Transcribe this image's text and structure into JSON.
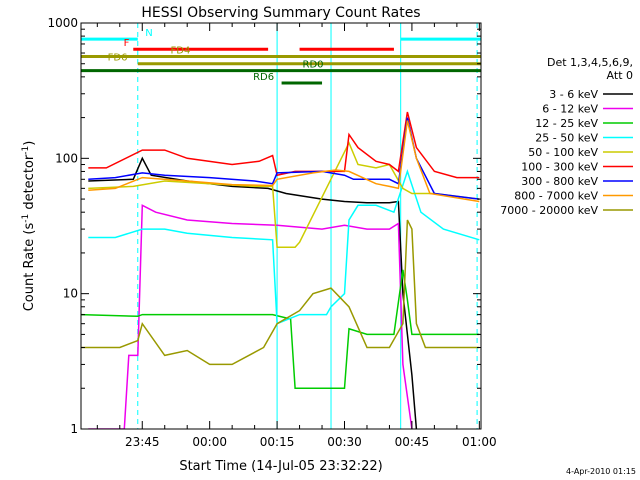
{
  "chart_data": {
    "type": "line",
    "title": "HESSI Observing Summary Count Rates",
    "xlabel": "Start Time (14-Jul-05 23:32:22)",
    "ylabel_main": "Count Rate (s",
    "ylabel_sup1": "-1",
    "ylabel_mid": " detector",
    "ylabel_sup2": "-1",
    "ylabel_end": ")",
    "yscale": "log",
    "ylim": [
      1,
      1000
    ],
    "y_ticks": [
      {
        "value": 1,
        "label": "1"
      },
      {
        "value": 10,
        "label": "10"
      },
      {
        "value": 100,
        "label": "100"
      },
      {
        "value": 1000,
        "label": "1000"
      }
    ],
    "xlim": [
      -13.63,
      75.37
    ],
    "x_ticks": [
      {
        "value": 0,
        "label": "23:45"
      },
      {
        "value": 15,
        "label": "00:00"
      },
      {
        "value": 30,
        "label": "00:15"
      },
      {
        "value": 45,
        "label": "00:30"
      },
      {
        "value": 60,
        "label": "00:45"
      },
      {
        "value": 75,
        "label": "01:00"
      }
    ],
    "legend": {
      "placement": "right",
      "header1": "Det 1,3,4,5,6,9,",
      "header2": "Att 0"
    },
    "series": [
      {
        "name": "3 - 6 keV",
        "color": "#000000",
        "points": [
          [
            -12,
            68
          ],
          [
            -2,
            70
          ],
          [
            0,
            100
          ],
          [
            2,
            75
          ],
          [
            10,
            68
          ],
          [
            20,
            62
          ],
          [
            28,
            60
          ],
          [
            32,
            55
          ],
          [
            40,
            50
          ],
          [
            45,
            48
          ],
          [
            50,
            47
          ],
          [
            55,
            47
          ],
          [
            57,
            48
          ],
          [
            58,
            10
          ],
          [
            60,
            2.5
          ],
          [
            61,
            1
          ]
        ]
      },
      {
        "name": "6 - 12 keV",
        "color": "#ee00ee",
        "points": [
          [
            -12,
            1
          ],
          [
            -4,
            1
          ],
          [
            -3,
            3.5
          ],
          [
            -1,
            3.5
          ],
          [
            0,
            45
          ],
          [
            3,
            40
          ],
          [
            10,
            35
          ],
          [
            20,
            33
          ],
          [
            30,
            32
          ],
          [
            40,
            30
          ],
          [
            45,
            32
          ],
          [
            50,
            30
          ],
          [
            55,
            30
          ],
          [
            57,
            33
          ],
          [
            58,
            3
          ],
          [
            60,
            1
          ]
        ]
      },
      {
        "name": "12 - 25 keV",
        "color": "#00cc00",
        "points": [
          [
            -13.6,
            7
          ],
          [
            -1,
            6.8
          ],
          [
            0,
            7
          ],
          [
            10,
            7
          ],
          [
            20,
            7
          ],
          [
            27,
            7
          ],
          [
            29,
            7
          ],
          [
            33,
            6.5
          ],
          [
            34,
            2
          ],
          [
            40,
            2
          ],
          [
            45,
            2
          ],
          [
            46,
            5.5
          ],
          [
            50,
            5
          ],
          [
            56,
            5
          ],
          [
            58,
            15
          ],
          [
            59,
            9
          ],
          [
            60,
            5
          ],
          [
            75,
            5
          ]
        ]
      },
      {
        "name": "25 - 50 keV",
        "color": "#00ffff",
        "points": [
          [
            -12,
            26
          ],
          [
            -6,
            26
          ],
          [
            0,
            30
          ],
          [
            5,
            30
          ],
          [
            10,
            28
          ],
          [
            20,
            26
          ],
          [
            29,
            25
          ],
          [
            30,
            6
          ],
          [
            35,
            7
          ],
          [
            41,
            7
          ],
          [
            42,
            8
          ],
          [
            45,
            10
          ],
          [
            46,
            35
          ],
          [
            48,
            45
          ],
          [
            52,
            45
          ],
          [
            56,
            40
          ],
          [
            59,
            80
          ],
          [
            62,
            40
          ],
          [
            67,
            30
          ],
          [
            75,
            25
          ]
        ]
      },
      {
        "name": "50 - 100 keV",
        "color": "#cccc00",
        "points": [
          [
            -12,
            60
          ],
          [
            -2,
            62
          ],
          [
            5,
            68
          ],
          [
            15,
            65
          ],
          [
            25,
            62
          ],
          [
            29,
            62
          ],
          [
            30,
            22
          ],
          [
            34,
            22
          ],
          [
            35,
            24
          ],
          [
            46,
            130
          ],
          [
            48,
            90
          ],
          [
            52,
            85
          ],
          [
            55,
            90
          ],
          [
            58,
            60
          ],
          [
            60,
            55
          ],
          [
            65,
            55
          ],
          [
            75,
            50
          ]
        ]
      },
      {
        "name": "100 - 300 keV",
        "color": "#ff0000",
        "points": [
          [
            -12,
            85
          ],
          [
            -8,
            85
          ],
          [
            0,
            115
          ],
          [
            5,
            115
          ],
          [
            10,
            100
          ],
          [
            20,
            90
          ],
          [
            26,
            95
          ],
          [
            29,
            105
          ],
          [
            30,
            75
          ],
          [
            34,
            80
          ],
          [
            45,
            80
          ],
          [
            46,
            150
          ],
          [
            48,
            120
          ],
          [
            52,
            95
          ],
          [
            55,
            90
          ],
          [
            57,
            80
          ],
          [
            59,
            220
          ],
          [
            61,
            120
          ],
          [
            65,
            80
          ],
          [
            70,
            72
          ],
          [
            75,
            72
          ]
        ]
      },
      {
        "name": "300 - 800 keV",
        "color": "#0000ff",
        "points": [
          [
            -12,
            70
          ],
          [
            -6,
            72
          ],
          [
            0,
            78
          ],
          [
            5,
            75
          ],
          [
            15,
            72
          ],
          [
            25,
            68
          ],
          [
            29,
            65
          ],
          [
            30,
            78
          ],
          [
            40,
            80
          ],
          [
            45,
            75
          ],
          [
            47,
            70
          ],
          [
            52,
            70
          ],
          [
            55,
            70
          ],
          [
            57,
            65
          ],
          [
            59,
            200
          ],
          [
            61,
            100
          ],
          [
            65,
            55
          ],
          [
            75,
            50
          ]
        ]
      },
      {
        "name": "800 - 7000 keV",
        "color": "#ff9900",
        "points": [
          [
            -12,
            58
          ],
          [
            -6,
            60
          ],
          [
            0,
            72
          ],
          [
            10,
            68
          ],
          [
            20,
            64
          ],
          [
            29,
            63
          ],
          [
            30,
            70
          ],
          [
            38,
            78
          ],
          [
            43,
            82
          ],
          [
            46,
            80
          ],
          [
            52,
            65
          ],
          [
            55,
            62
          ],
          [
            57,
            60
          ],
          [
            59,
            190
          ],
          [
            61,
            100
          ],
          [
            64,
            55
          ],
          [
            75,
            48
          ]
        ]
      },
      {
        "name": "7000 - 20000 keV",
        "color": "#999900",
        "points": [
          [
            -13.6,
            4
          ],
          [
            -5,
            4
          ],
          [
            -1,
            4.5
          ],
          [
            0,
            6
          ],
          [
            5,
            3.5
          ],
          [
            10,
            3.8
          ],
          [
            15,
            3
          ],
          [
            20,
            3
          ],
          [
            27,
            4
          ],
          [
            30,
            6
          ],
          [
            35,
            7.5
          ],
          [
            38,
            10
          ],
          [
            42,
            11
          ],
          [
            46,
            8
          ],
          [
            50,
            4
          ],
          [
            55,
            4
          ],
          [
            58,
            6
          ],
          [
            59,
            35
          ],
          [
            60,
            30
          ],
          [
            61,
            6
          ],
          [
            63,
            4
          ],
          [
            75,
            4
          ]
        ]
      }
    ],
    "bars": [
      {
        "label": "N",
        "color": "#00ffff",
        "y": 760,
        "label_x": 1.5,
        "segments": [
          [
            -13.6,
            -1
          ],
          [
            57.5,
            75.4
          ]
        ]
      },
      {
        "label": "F",
        "color": "#ff0000",
        "y": 640,
        "label_x": -3.5,
        "segments": [
          [
            -2,
            28
          ],
          [
            35,
            56
          ]
        ]
      },
      {
        "label": "FD4",
        "color": "#999900",
        "y": 565,
        "label_x": 8.5,
        "segments": [
          [
            -13.6,
            75.4
          ]
        ]
      },
      {
        "label": "FD6",
        "color": "#999900",
        "y": 500,
        "label_x": -5.5,
        "segments": [
          [
            -1,
            75.4
          ]
        ]
      },
      {
        "label": "RD0",
        "color": "#006600",
        "y": 445,
        "label_x": 38,
        "segments": [
          [
            -13.6,
            75.4
          ]
        ]
      },
      {
        "label": "RD6",
        "color": "#006600",
        "y": 360,
        "label_x": 27,
        "segments": [
          [
            31,
            40
          ]
        ]
      }
    ],
    "vlines": [
      {
        "x": -1,
        "color": "#00ffff",
        "dashed": true
      },
      {
        "x": 30,
        "color": "#00ffff",
        "dashed": false
      },
      {
        "x": 42,
        "color": "#00ffff",
        "dashed": false
      },
      {
        "x": 57.5,
        "color": "#00ffff",
        "dashed": false
      },
      {
        "x": 74.5,
        "color": "#00ffff",
        "dashed": true
      }
    ]
  },
  "footer": {
    "date": "4-Apr-2010 01:15"
  }
}
